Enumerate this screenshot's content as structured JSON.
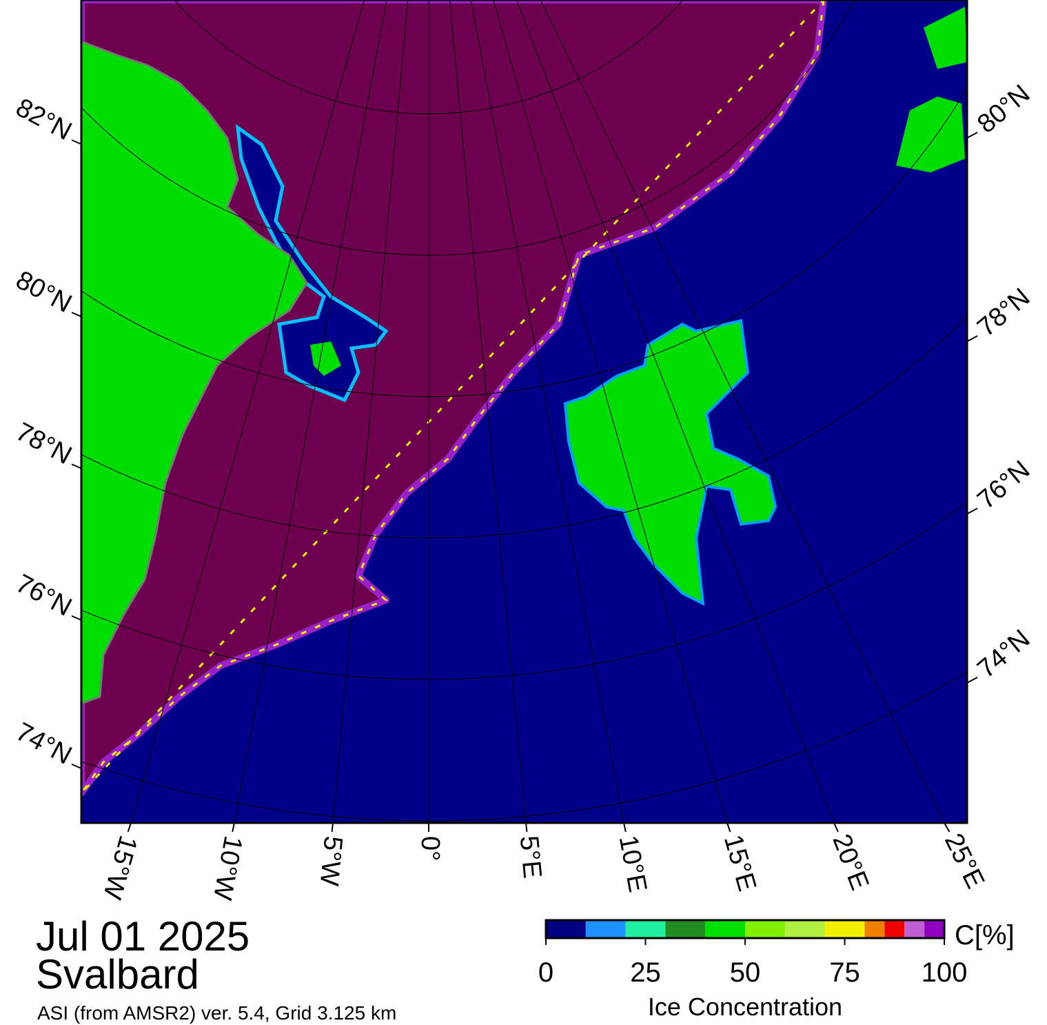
{
  "map": {
    "date": "Jul 01 2025",
    "region": "Svalbard",
    "source": "ASI (from AMSR2) ver. 5.4,  Grid 3.125 km",
    "lon_labels": [
      "15°W",
      "10°W",
      "5°W",
      "0°",
      "5°E",
      "10°E",
      "15°E",
      "20°E",
      "25°E"
    ],
    "lat_labels_left": [
      "82°N",
      "80°N",
      "78°N",
      "76°N",
      "74°N"
    ],
    "lat_labels_right": [
      "80°N",
      "78°N",
      "76°N",
      "74°N"
    ]
  },
  "colorbar": {
    "title": "Ice Concentration",
    "unit": "C[%]",
    "range": [
      0,
      100
    ],
    "ticks": [
      0,
      25,
      50,
      75,
      100
    ],
    "bounds": [
      0,
      10,
      20,
      30,
      40,
      50,
      60,
      70,
      80,
      85,
      90,
      95,
      100
    ],
    "colors": [
      "#000080",
      "#1e90ff",
      "#20f0a0",
      "#228b22",
      "#00e000",
      "#80f000",
      "#b0f040",
      "#f0f000",
      "#f08000",
      "#f00000",
      "#c060d0",
      "#9000c0"
    ]
  }
}
